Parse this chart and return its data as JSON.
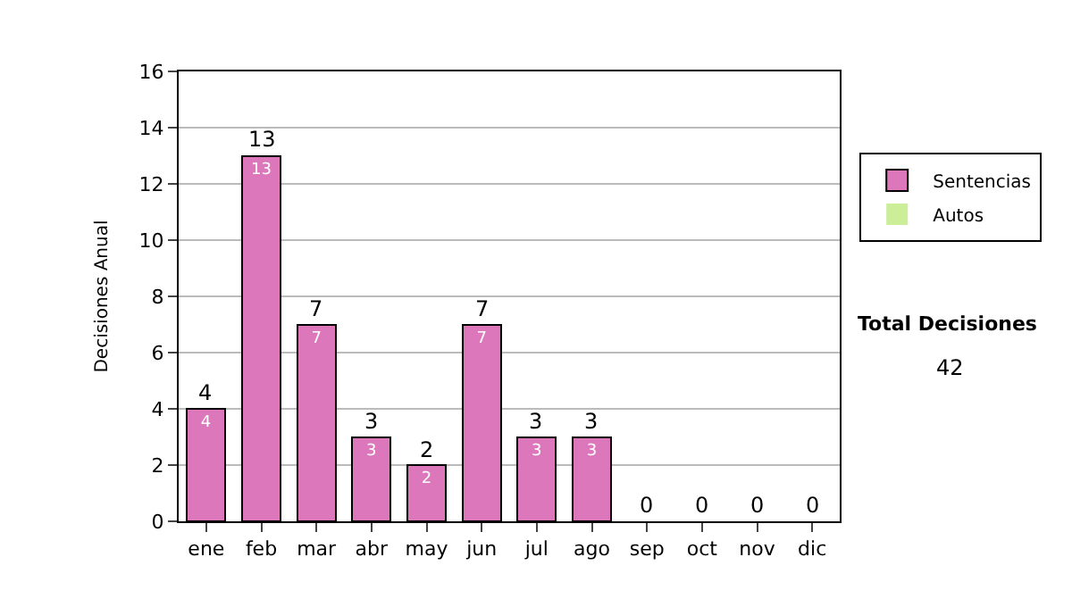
{
  "chart_data": {
    "type": "bar",
    "stacked": true,
    "ylabel": "Decisiones Anual",
    "categories": [
      "ene",
      "feb",
      "mar",
      "abr",
      "may",
      "jun",
      "jul",
      "ago",
      "sep",
      "oct",
      "nov",
      "dic"
    ],
    "series": [
      {
        "name": "Sentencias",
        "color": "#dd77bb",
        "values": [
          4,
          13,
          7,
          3,
          2,
          7,
          3,
          3,
          0,
          0,
          0,
          0
        ],
        "value_labels": [
          "4",
          "13",
          "7",
          "3",
          "2",
          "7",
          "3",
          "3",
          null,
          null,
          null,
          null
        ]
      },
      {
        "name": "Autos",
        "color": "#ccee99",
        "values": [
          0,
          0,
          0,
          0,
          0,
          0,
          0,
          0,
          0,
          0,
          0,
          0
        ]
      }
    ],
    "totals": [
      "4",
      "13",
      "7",
      "3",
      "2",
      "7",
      "3",
      "3",
      "0",
      "0",
      "0",
      "0"
    ],
    "ylim": [
      0,
      16
    ],
    "yticks": [
      0,
      2,
      4,
      6,
      8,
      10,
      12,
      14,
      16
    ],
    "grid": "y",
    "legend": "right",
    "annotations": [
      "Total Decisiones",
      "42"
    ]
  }
}
